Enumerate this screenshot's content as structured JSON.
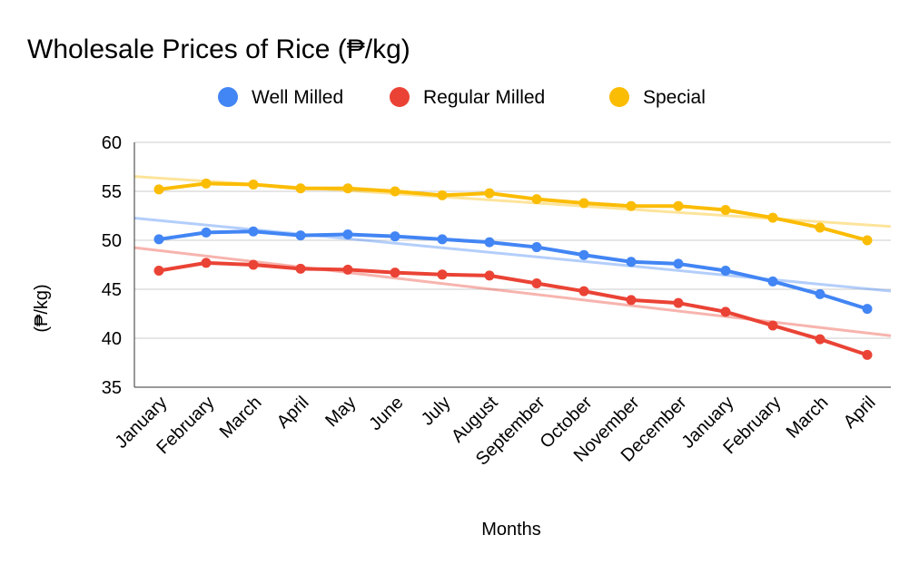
{
  "chart_data": {
    "type": "line",
    "title": "Wholesale Prices of Rice (₱/kg)",
    "xlabel": "Months",
    "ylabel": "(₱/kg)",
    "categories": [
      "January",
      "February",
      "March",
      "April",
      "May",
      "June",
      "July",
      "August",
      "September",
      "October",
      "November",
      "December",
      "January",
      "February",
      "March",
      "April"
    ],
    "ylim": [
      35,
      60
    ],
    "yticks": [
      35,
      40,
      45,
      50,
      55,
      60
    ],
    "grid": true,
    "legend_position": "top",
    "trendlines": true,
    "series": [
      {
        "name": "Well Milled",
        "color": "#4285f4",
        "values": [
          50.1,
          50.8,
          50.9,
          50.5,
          50.6,
          50.4,
          50.1,
          49.8,
          49.3,
          48.5,
          47.8,
          47.6,
          46.9,
          45.8,
          44.5,
          43.0
        ]
      },
      {
        "name": "Regular Milled",
        "color": "#ea4335",
        "values": [
          46.9,
          47.7,
          47.5,
          47.1,
          47.0,
          46.7,
          46.5,
          46.4,
          45.6,
          44.8,
          43.9,
          43.6,
          42.7,
          41.3,
          39.9,
          38.3
        ]
      },
      {
        "name": "Special",
        "color": "#fbbc04",
        "values": [
          55.2,
          55.8,
          55.7,
          55.3,
          55.3,
          55.0,
          54.6,
          54.8,
          54.2,
          53.8,
          53.5,
          53.5,
          53.1,
          52.3,
          51.3,
          50.0
        ]
      }
    ]
  }
}
